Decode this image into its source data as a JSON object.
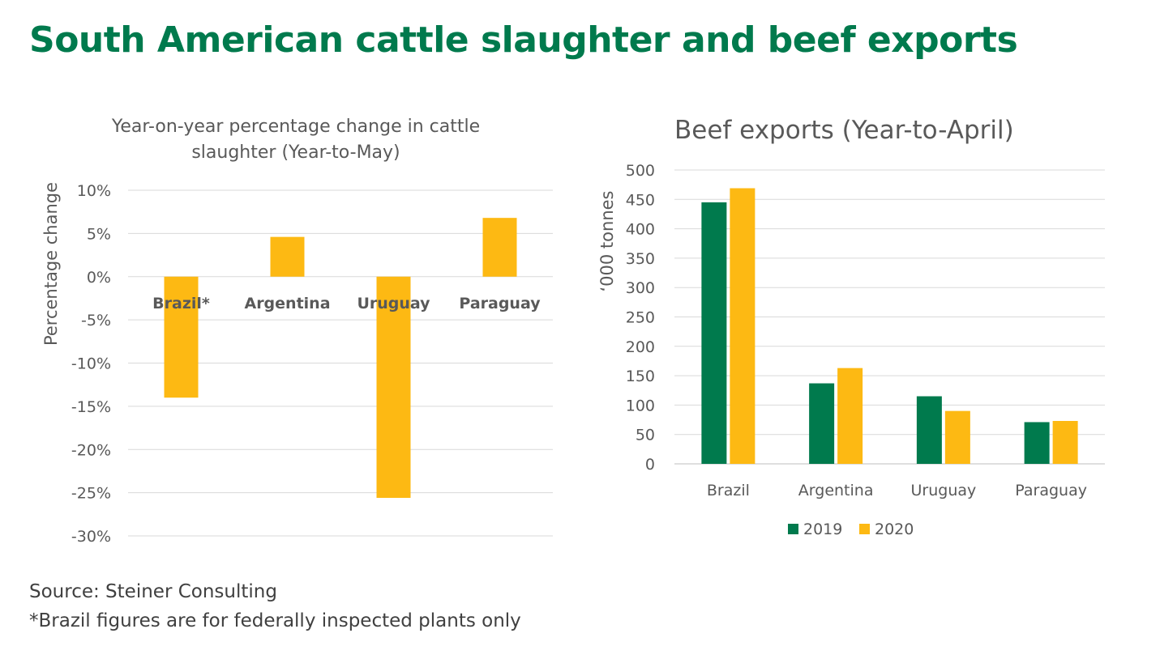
{
  "page": {
    "title": "South American cattle slaughter and beef exports",
    "title_color": "#007a4d",
    "source": "Source: Steiner Consulting",
    "footnote": "*Brazil figures are for federally inspected plants only"
  },
  "chart_data": [
    {
      "type": "bar",
      "title_lines": [
        "Year-on-year percentage change in cattle",
        "slaughter (Year-to-May)"
      ],
      "ylabel": "Percentage change",
      "xlabel": "",
      "categories": [
        "Brazil*",
        "Argentina",
        "Uruguay",
        "Paraguay"
      ],
      "series": [
        {
          "values": [
            -14,
            4.6,
            -25.6,
            6.8
          ],
          "color": "#fdb913"
        }
      ],
      "ylim": [
        -30,
        10
      ],
      "yticks": [
        10,
        5,
        0,
        -5,
        -10,
        -15,
        -20,
        -25,
        -30
      ],
      "ytick_labels": [
        "10%",
        "5%",
        "0%",
        "-5%",
        "-10%",
        "-15%",
        "-20%",
        "-25%",
        "-30%"
      ],
      "grid": true,
      "legend": false
    },
    {
      "type": "bar",
      "title": "Beef exports (Year-to-April)",
      "ylabel": "‘000 tonnes",
      "xlabel": "",
      "categories": [
        "Brazil",
        "Argentina",
        "Uruguay",
        "Paraguay"
      ],
      "series": [
        {
          "name": "2019",
          "values": [
            445,
            137,
            115,
            71
          ],
          "color": "#007a4d"
        },
        {
          "name": "2020",
          "values": [
            469,
            163,
            90,
            73
          ],
          "color": "#fdb913"
        }
      ],
      "ylim": [
        0,
        500
      ],
      "yticks": [
        0,
        50,
        100,
        150,
        200,
        250,
        300,
        350,
        400,
        450,
        500
      ],
      "grid": true,
      "legend": "bottom"
    }
  ]
}
